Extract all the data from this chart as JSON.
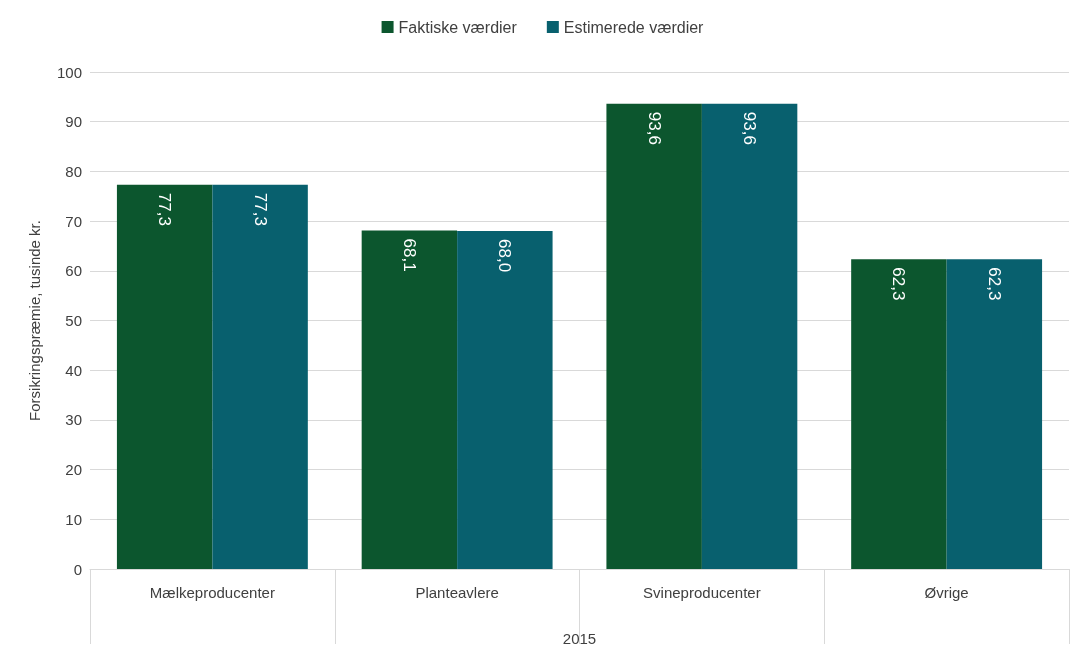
{
  "chart_data": {
    "type": "bar",
    "xlabel": "2015",
    "ylabel": "Forsikringspræmie, tusinde kr.",
    "categories": [
      "Mælkeproducenter",
      "Planteavlere",
      "Svineproducenter",
      "Øvrige"
    ],
    "series": [
      {
        "name": "Faktiske værdier",
        "color": "#0c562e",
        "values": [
          77.3,
          68.1,
          93.6,
          62.3
        ],
        "value_labels": [
          "77,3",
          "68,1",
          "93,6",
          "62,3"
        ]
      },
      {
        "name": "Estimerede værdier",
        "color": "#08606e",
        "values": [
          77.3,
          68.0,
          93.6,
          62.3
        ],
        "value_labels": [
          "77,3",
          "68,0",
          "93,6",
          "62,3"
        ]
      }
    ],
    "ylim": [
      0,
      100
    ],
    "yticks": [
      0,
      10,
      20,
      30,
      40,
      50,
      60,
      70,
      80,
      90,
      100
    ],
    "grid": "y",
    "legend": "top"
  }
}
